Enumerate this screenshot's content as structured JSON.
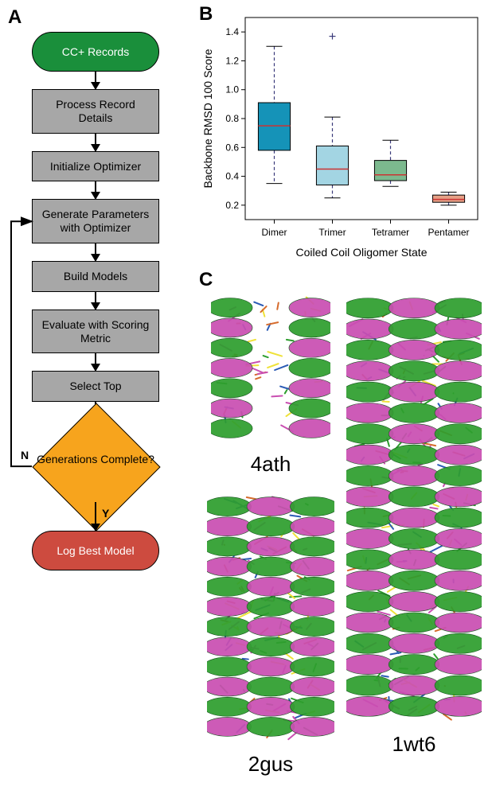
{
  "panels": {
    "A": {
      "label": "A"
    },
    "B": {
      "label": "B"
    },
    "C": {
      "label": "C"
    }
  },
  "flowchart": {
    "nodes": [
      {
        "id": "start",
        "type": "start",
        "label": "CC+ Records"
      },
      {
        "id": "process",
        "type": "process",
        "label": "Process Record Details"
      },
      {
        "id": "init",
        "type": "process",
        "label": "Initialize Optimizer"
      },
      {
        "id": "gen",
        "type": "process",
        "label": "Generate Parameters with Optimizer"
      },
      {
        "id": "build",
        "type": "process",
        "label": "Build Models"
      },
      {
        "id": "eval",
        "type": "process",
        "label": "Evaluate with Scoring Metric"
      },
      {
        "id": "select",
        "type": "process",
        "label": "Select Top"
      },
      {
        "id": "decision",
        "type": "decision",
        "label": "Generations Complete?"
      },
      {
        "id": "end",
        "type": "end",
        "label": "Log Best Model"
      }
    ],
    "edge_labels": {
      "no": "N",
      "yes": "Y"
    },
    "colors": {
      "start_bg": "#1a8f3b",
      "process_bg": "#a7a7a7",
      "decision_bg": "#f7a41d",
      "end_bg": "#cd4b3f",
      "border": "#000000",
      "start_end_text": "#ffffff",
      "process_text": "#000000"
    },
    "fontsize": 14
  },
  "boxplot": {
    "type": "boxplot",
    "xlabel": "Coiled Coil Oligomer State",
    "ylabel": "Backbone RMSD 100 Score",
    "label_fontsize": 14,
    "tick_fontsize": 12,
    "ylim": [
      0.1,
      1.5
    ],
    "yticks": [
      0.2,
      0.4,
      0.6,
      0.8,
      1.0,
      1.2,
      1.4
    ],
    "categories": [
      "Dimer",
      "Trimer",
      "Tetramer",
      "Pentamer"
    ],
    "boxes": [
      {
        "q1": 0.58,
        "median": 0.75,
        "q3": 0.91,
        "whisker_lo": 0.35,
        "whisker_hi": 1.3,
        "outliers": [],
        "fill": "#1593b8"
      },
      {
        "q1": 0.34,
        "median": 0.45,
        "q3": 0.61,
        "whisker_lo": 0.25,
        "whisker_hi": 0.81,
        "outliers": [
          1.37
        ],
        "fill": "#a3d5e3"
      },
      {
        "q1": 0.37,
        "median": 0.41,
        "q3": 0.51,
        "whisker_lo": 0.33,
        "whisker_hi": 0.65,
        "outliers": [],
        "fill": "#7cb98e"
      },
      {
        "q1": 0.22,
        "median": 0.24,
        "q3": 0.27,
        "whisker_lo": 0.2,
        "whisker_hi": 0.29,
        "outliers": [],
        "fill": "#e6a086"
      }
    ],
    "median_color": "#cc3333",
    "whisker_color": "#3a3a7a",
    "whisker_dash": "4,3",
    "box_border": "#000000",
    "outlier_marker": "+",
    "outlier_color": "#3a3a7a",
    "frame_color": "#000000",
    "background": "#ffffff"
  },
  "proteins": {
    "labels": [
      "4ath",
      "2gus",
      "1wt6"
    ],
    "label_fontsize": 26,
    "helix_color_a": "#2e9e2e",
    "helix_color_b": "#c94fb1",
    "sidechain_colors": [
      "#2e9e2e",
      "#c94fb1",
      "#2b5bb5",
      "#d66b2c",
      "#efe23a"
    ],
    "background": "#ffffff"
  }
}
